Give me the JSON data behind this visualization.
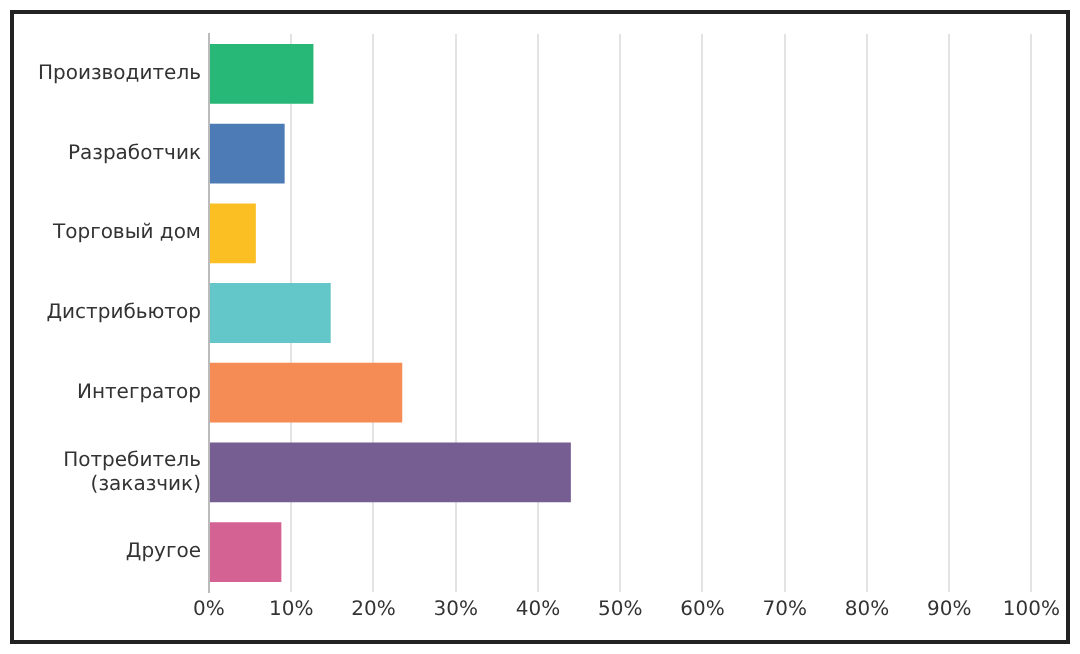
{
  "chart_data": {
    "type": "bar",
    "orientation": "horizontal",
    "categories": [
      "Производитель",
      "Разработчик",
      "Торговый дом",
      "Дистрибьютор",
      "Интегратор",
      "Потребитель (заказчик)",
      "Другое"
    ],
    "values": [
      12.7,
      9.2,
      5.7,
      14.8,
      23.5,
      44.0,
      8.8
    ],
    "colors": [
      "#27b776",
      "#4c7bb5",
      "#fbbf24",
      "#63c6c8",
      "#f58b55",
      "#765d92",
      "#d46293"
    ],
    "xlim": [
      0,
      100
    ],
    "xticks": [
      {
        "value": 0,
        "label": "0%"
      },
      {
        "value": 10,
        "label": "10%"
      },
      {
        "value": 20,
        "label": "20%"
      },
      {
        "value": 30,
        "label": "30%"
      },
      {
        "value": 40,
        "label": "40%"
      },
      {
        "value": 50,
        "label": "50%"
      },
      {
        "value": 60,
        "label": "60%"
      },
      {
        "value": 70,
        "label": "70%"
      },
      {
        "value": 80,
        "label": "80%"
      },
      {
        "value": 90,
        "label": "90%"
      },
      {
        "value": 100,
        "label": "100%"
      }
    ],
    "grid": "x",
    "legend": false
  }
}
